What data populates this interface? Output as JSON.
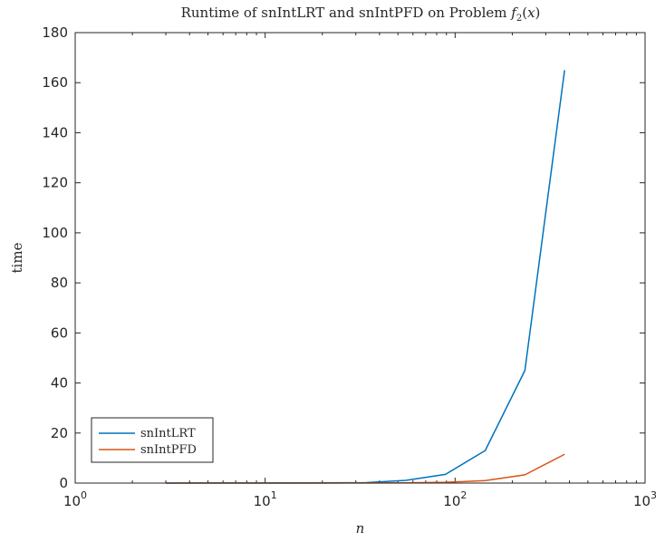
{
  "chart_data": {
    "type": "line",
    "title": {
      "prefix": "Runtime of snIntLRT and snIntPFD on Problem ",
      "math_f": "f",
      "math_sub": "2",
      "math_open": "(",
      "math_x": "x",
      "math_close": ")"
    },
    "xlabel": "n",
    "ylabel": "time",
    "xscale": "log",
    "xlim": [
      1,
      1000
    ],
    "ylim": [
      0,
      180
    ],
    "xticks": [
      {
        "value": 1,
        "base": "10",
        "exp": "0"
      },
      {
        "value": 10,
        "base": "10",
        "exp": "1"
      },
      {
        "value": 100,
        "base": "10",
        "exp": "2"
      },
      {
        "value": 1000,
        "base": "10",
        "exp": "3"
      }
    ],
    "yticks": [
      0,
      20,
      40,
      60,
      80,
      100,
      120,
      140,
      160,
      180
    ],
    "grid": false,
    "legend_position": "bottom-left",
    "series": [
      {
        "name": "snIntLRT",
        "color": "#0072BD",
        "x": [
          3,
          5,
          8,
          13,
          21,
          34,
          55,
          89,
          144,
          233,
          377
        ],
        "y": [
          0.02,
          0.03,
          0.04,
          0.06,
          0.1,
          0.2,
          1.1,
          3.5,
          13,
          45,
          165
        ]
      },
      {
        "name": "snIntPFD",
        "color": "#D95319",
        "x": [
          3,
          5,
          8,
          13,
          21,
          34,
          55,
          89,
          144,
          233,
          377
        ],
        "y": [
          0.01,
          0.01,
          0.01,
          0.02,
          0.02,
          0.04,
          0.1,
          0.3,
          1.0,
          3.3,
          11.5
        ]
      }
    ]
  }
}
